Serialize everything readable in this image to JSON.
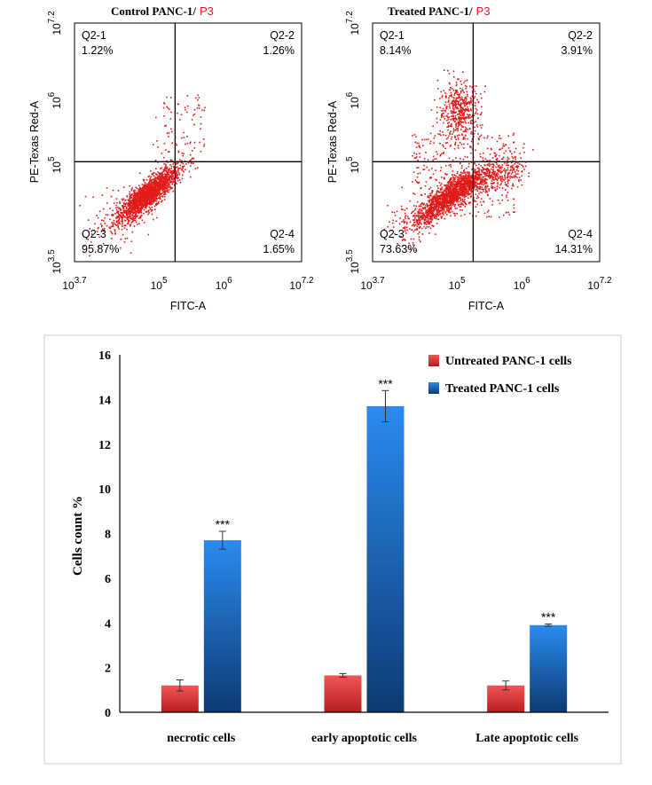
{
  "chart_data": [
    {
      "type": "scatter",
      "title": "Control PANC-1/",
      "title_gate": "P3",
      "xlabel": "FITC-A",
      "ylabel": "PE-Texas Red-A",
      "x_scale": "log",
      "y_scale": "log",
      "xlim_exp": [
        3.7,
        7.2
      ],
      "ylim_exp": [
        3.5,
        7.2
      ],
      "x_ticks": [
        {
          "base": "10",
          "exp": "3.7"
        },
        {
          "base": "10",
          "exp": "5"
        },
        {
          "base": "10",
          "exp": "6"
        },
        {
          "base": "10",
          "exp": "7.2"
        }
      ],
      "y_ticks": [
        {
          "base": "10",
          "exp": "3.5"
        },
        {
          "base": "10",
          "exp": "5"
        },
        {
          "base": "10",
          "exp": "6"
        },
        {
          "base": "10",
          "exp": "7.2"
        }
      ],
      "gate_x_exp": 5.25,
      "gate_y_exp": 5.05,
      "quadrants": [
        {
          "name": "Q2-1",
          "value": "1.22%"
        },
        {
          "name": "Q2-2",
          "value": "1.26%"
        },
        {
          "name": "Q2-3",
          "value": "95.87%"
        },
        {
          "name": "Q2-4",
          "value": "1.65%"
        }
      ],
      "point_color": "#e31b1b"
    },
    {
      "type": "scatter",
      "title": "Treated PANC-1/",
      "title_gate": "P3",
      "xlabel": "FITC-A",
      "ylabel": "PE-Texas Red-A",
      "x_scale": "log",
      "y_scale": "log",
      "xlim_exp": [
        3.7,
        7.2
      ],
      "ylim_exp": [
        3.5,
        7.2
      ],
      "x_ticks": [
        {
          "base": "10",
          "exp": "3.7"
        },
        {
          "base": "10",
          "exp": "5"
        },
        {
          "base": "10",
          "exp": "6"
        },
        {
          "base": "10",
          "exp": "7.2"
        }
      ],
      "y_ticks": [
        {
          "base": "10",
          "exp": "3.5"
        },
        {
          "base": "10",
          "exp": "5"
        },
        {
          "base": "10",
          "exp": "6"
        },
        {
          "base": "10",
          "exp": "7.2"
        }
      ],
      "gate_x_exp": 5.25,
      "gate_y_exp": 5.05,
      "quadrants": [
        {
          "name": "Q2-1",
          "value": "8.14%"
        },
        {
          "name": "Q2-2",
          "value": "3.91%"
        },
        {
          "name": "Q2-3",
          "value": "73.63%"
        },
        {
          "name": "Q2-4",
          "value": "14.31%"
        }
      ],
      "point_color": "#e31b1b"
    },
    {
      "type": "bar",
      "categories": [
        "necrotic cells",
        "early apoptotic cells",
        "Late apoptotic cells"
      ],
      "series": [
        {
          "name": "Untreated PANC-1 cells",
          "values": [
            1.2,
            1.65,
            1.2
          ],
          "errors": [
            0.25,
            0.08,
            0.2
          ],
          "color": "#e03a3a",
          "significance": [
            "",
            "",
            ""
          ]
        },
        {
          "name": "Treated PANC-1 cells",
          "values": [
            7.7,
            13.7,
            3.9
          ],
          "errors": [
            0.4,
            0.7,
            0.05
          ],
          "color": "#1f6fc5",
          "significance": [
            "***",
            "***",
            "***"
          ]
        }
      ],
      "xlabel": "",
      "ylabel": "Cells count %",
      "ylim": [
        0,
        16
      ],
      "yticks": [
        0,
        2,
        4,
        6,
        8,
        10,
        12,
        14,
        16
      ],
      "legend": "top-right",
      "grid": false
    }
  ]
}
